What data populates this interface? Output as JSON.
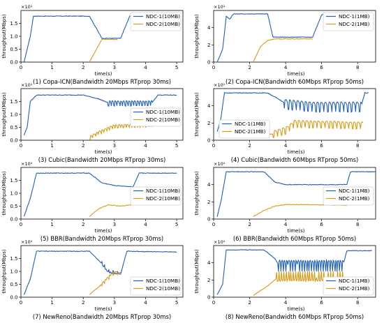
{
  "colors": {
    "ndc1": "#1f5fb8",
    "ndc2": "#d99a16"
  },
  "chart_data": [
    {
      "type": "line",
      "title": "(1) Copa-ICN(Bandwidth 20Mbps RTprop 30ms)",
      "xlabel": "time(s)",
      "ylabel": "throughput(Mbps)",
      "scale_label": "×10¹",
      "xlim": [
        0,
        5.2
      ],
      "ylim": [
        0,
        2.0
      ],
      "xticks": [
        0,
        1,
        2,
        3,
        4,
        5
      ],
      "yticks": [
        0.0,
        0.5,
        1.0,
        1.5
      ],
      "legend": "upper right",
      "series": [
        {
          "name": "NDC-1(10MB)",
          "x": [
            0.1,
            0.3,
            0.4,
            2.2,
            2.6,
            3.2,
            3.5,
            5.0
          ],
          "y": [
            0.0,
            1.0,
            1.78,
            1.78,
            0.92,
            0.92,
            1.8,
            1.8
          ]
        },
        {
          "name": "NDC-2(10MB)",
          "x": [
            2.2,
            2.4,
            2.6,
            3.0,
            3.1
          ],
          "y": [
            0.0,
            0.45,
            0.88,
            0.88,
            0.88
          ]
        }
      ]
    },
    {
      "type": "line",
      "title": "(2) Copa-ICN(Bandwidth 60Mbps RTprop 50ms)",
      "xlabel": "time(s)",
      "ylabel": "throughput(Mbps)",
      "scale_label": "×10¹",
      "xlim": [
        0,
        9.0
      ],
      "ylim": [
        0,
        6.0
      ],
      "xticks": [
        0,
        2,
        4,
        6,
        8
      ],
      "yticks": [
        0,
        2,
        4
      ],
      "legend": "upper right",
      "series": [
        {
          "name": "NDC-1(1MB)",
          "x": [
            0.2,
            0.5,
            0.7,
            0.9,
            1.1,
            1.4,
            3.0,
            3.3,
            5.5,
            6.0,
            6.2,
            8.5
          ],
          "y": [
            0.0,
            1.5,
            5.3,
            5.0,
            5.6,
            5.6,
            5.6,
            2.9,
            2.9,
            5.5,
            5.6,
            5.6
          ]
        },
        {
          "name": "NDC-2(1MB)",
          "x": [
            2.2,
            2.6,
            3.0,
            3.4,
            5.5
          ],
          "y": [
            0.0,
            1.8,
            2.5,
            2.7,
            2.7
          ]
        }
      ]
    },
    {
      "type": "line",
      "title": "(3) Cubic(Bandwidth 20Mbps RTprop 30ms)",
      "xlabel": "time(s)",
      "ylabel": "throughput(Mbps)",
      "scale_label": "×10¹",
      "xlim": [
        0,
        5.2
      ],
      "ylim": [
        0,
        2.0
      ],
      "xticks": [
        0,
        1,
        2,
        3,
        4,
        5
      ],
      "yticks": [
        0.0,
        0.5,
        1.0,
        1.5
      ],
      "legend": "center right",
      "series": [
        {
          "name": "NDC-1(10MB)",
          "x": [
            0.1,
            0.2,
            0.3,
            0.5,
            2.0,
            2.5,
            2.8,
            4.2,
            4.4,
            5.0
          ],
          "y": [
            0.2,
            0.5,
            1.5,
            1.75,
            1.75,
            1.6,
            1.45,
            1.45,
            1.75,
            1.75
          ]
        },
        {
          "name": "NDC-2(10MB)",
          "x": [
            2.2,
            2.5,
            2.8,
            3.0,
            4.2
          ],
          "y": [
            0.1,
            0.3,
            0.45,
            0.55,
            0.6
          ]
        }
      ]
    },
    {
      "type": "line",
      "title": "(4) Cubic(Bandwidth 60Mbps RTprop 50ms)",
      "xlabel": "time(s)",
      "ylabel": "throughput(Mbps)",
      "scale_label": "×10¹",
      "xlim": [
        0,
        9.0
      ],
      "ylim": [
        0,
        6.0
      ],
      "xticks": [
        0,
        2,
        4,
        6,
        8
      ],
      "yticks": [
        0,
        2,
        4
      ],
      "legend": "lower left",
      "series": [
        {
          "name": "NDC-1(1MB)",
          "x": [
            0.2,
            0.4,
            0.6,
            3.0,
            4.0,
            5.5,
            8.2,
            8.4,
            8.6
          ],
          "y": [
            1.0,
            2.5,
            5.5,
            5.5,
            4.3,
            4.0,
            4.0,
            5.5,
            5.5
          ]
        },
        {
          "name": "NDC-2(1MB)",
          "x": [
            2.2,
            3.0,
            4.0,
            4.5,
            8.3
          ],
          "y": [
            0.3,
            0.6,
            1.2,
            2.0,
            1.8
          ]
        }
      ]
    },
    {
      "type": "line",
      "title": "(5) BBR(Bandwidth 20Mbps RTprop 30ms)",
      "xlabel": "time(s)",
      "ylabel": "throughput(Mbps)",
      "scale_label": "×10¹",
      "xlim": [
        0,
        5.2
      ],
      "ylim": [
        0,
        2.0
      ],
      "xticks": [
        0,
        1,
        2,
        3,
        4,
        5
      ],
      "yticks": [
        0.0,
        0.5,
        1.0,
        1.5
      ],
      "legend": "center right",
      "series": [
        {
          "name": "NDC-1(10MB)",
          "x": [
            0.1,
            0.3,
            0.5,
            2.2,
            2.6,
            3.0,
            3.6,
            3.8,
            5.0
          ],
          "y": [
            0.1,
            0.8,
            1.78,
            1.78,
            1.4,
            1.3,
            1.25,
            1.78,
            1.78
          ]
        },
        {
          "name": "NDC-2(10MB)",
          "x": [
            2.2,
            2.5,
            2.8,
            3.2,
            3.8
          ],
          "y": [
            0.1,
            0.4,
            0.55,
            0.5,
            0.6
          ]
        }
      ]
    },
    {
      "type": "line",
      "title": "(6) BBR(Bandwidth 60Mbps RTprop 50ms)",
      "xlabel": "time(s)",
      "ylabel": "throughput(Mbps)",
      "scale_label": "×10¹",
      "xlim": [
        0,
        9.0
      ],
      "ylim": [
        0,
        6.0
      ],
      "xticks": [
        0,
        2,
        4,
        6,
        8
      ],
      "yticks": [
        0,
        2,
        4
      ],
      "legend": "center right",
      "series": [
        {
          "name": "NDC-1(1MB)",
          "x": [
            0.2,
            0.4,
            0.7,
            2.8,
            3.4,
            4.0,
            7.4,
            7.6,
            9.0
          ],
          "y": [
            0.3,
            2.0,
            5.5,
            5.5,
            4.3,
            4.0,
            4.0,
            5.5,
            5.5
          ]
        },
        {
          "name": "NDC-2(1MB)",
          "x": [
            2.2,
            2.8,
            3.4,
            4.0,
            7.4
          ],
          "y": [
            0.3,
            1.0,
            1.5,
            1.7,
            1.6
          ]
        }
      ]
    },
    {
      "type": "line",
      "title": "(7) NewReno(Bandwidth 20Mbps RTprop 30ms)",
      "xlabel": "time(s)",
      "ylabel": "throughput(Mbps)",
      "scale_label": "×10¹",
      "xlim": [
        0,
        5.2
      ],
      "ylim": [
        0,
        2.0
      ],
      "xticks": [
        0,
        1,
        2,
        3,
        4,
        5
      ],
      "yticks": [
        0.0,
        0.5,
        1.0,
        1.5
      ],
      "legend": "lower right",
      "series": [
        {
          "name": "NDC-1(10MB)",
          "x": [
            0.1,
            0.3,
            0.5,
            2.2,
            2.6,
            2.8,
            3.2,
            3.4,
            5.0
          ],
          "y": [
            0.1,
            0.7,
            1.78,
            1.78,
            1.3,
            1.0,
            0.9,
            1.78,
            1.75
          ]
        },
        {
          "name": "NDC-2(10MB)",
          "x": [
            2.2,
            2.5,
            2.8,
            3.0,
            3.2
          ],
          "y": [
            0.1,
            0.4,
            0.75,
            0.95,
            0.95
          ]
        }
      ]
    },
    {
      "type": "line",
      "title": "(8) NewReno(Bandwidth 60Mbps RTprop 50ms)",
      "xlabel": "time(s)",
      "ylabel": "throughput(Mbps)",
      "scale_label": "×10¹",
      "xlim": [
        0,
        9.0
      ],
      "ylim": [
        0,
        6.0
      ],
      "xticks": [
        0,
        2,
        4,
        6,
        8
      ],
      "yticks": [
        0,
        2,
        4
      ],
      "legend": "lower right",
      "series": [
        {
          "name": "NDC-1(1MB)",
          "x": [
            0.2,
            0.5,
            0.7,
            2.8,
            3.4,
            3.6,
            7.2,
            7.4,
            8.8
          ],
          "y": [
            0.3,
            1.5,
            5.5,
            5.5,
            4.5,
            3.8,
            3.8,
            5.4,
            5.4
          ]
        },
        {
          "name": "NDC-2(1MB)",
          "x": [
            2.2,
            3.0,
            3.5,
            3.8,
            7.2
          ],
          "y": [
            0.2,
            1.3,
            2.2,
            2.3,
            2.3
          ]
        }
      ]
    }
  ]
}
